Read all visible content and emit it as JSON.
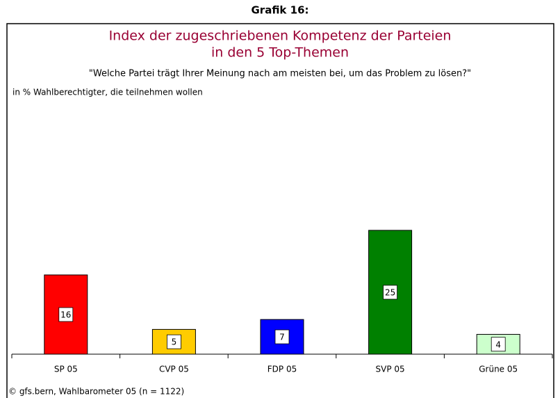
{
  "heading": "Grafik 16:",
  "chart_data": {
    "type": "bar",
    "title": [
      "Index der zugeschriebenen Kompetenz der Parteien",
      "in den 5 Top-Themen"
    ],
    "subtitle": "\"Welche Partei trägt Ihrer Meinung nach am meisten bei, um das Problem zu lösen?\"",
    "y_label": "in % Wahlberechtigter, die teilnehmen wollen",
    "categories": [
      "SP 05",
      "CVP 05",
      "FDP 05",
      "SVP 05",
      "Grüne 05"
    ],
    "values": [
      16,
      5,
      7,
      25,
      4
    ],
    "colors": [
      "#ff0000",
      "#ffcc00",
      "#0000ff",
      "#008000",
      "#ccffcc"
    ],
    "ylim": [
      0,
      50
    ]
  },
  "source": "© gfs.bern, Wahlbarometer 05 (n = 1122)"
}
